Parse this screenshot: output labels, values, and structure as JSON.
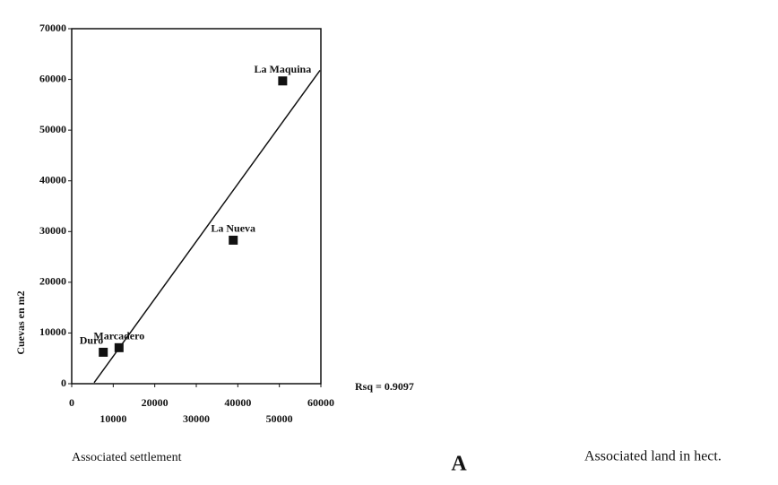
{
  "chart_data": {
    "type": "scatter",
    "ylabel": "Cuevas en m2",
    "xlabel": "Associated settlement",
    "panel_label": "A",
    "x2label": "Associated land in hect.",
    "annotation": "Rsq = 0.9097",
    "labels": [
      "La Maquina",
      "La Nueva",
      "Marcadero",
      "Duro"
    ],
    "x": [
      50800,
      38900,
      11400,
      7600
    ],
    "values": [
      59700,
      28300,
      7100,
      6200
    ],
    "color": "#111111",
    "fit_line": {
      "x": [
        5400,
        59800
      ],
      "y": [
        200,
        61800
      ]
    },
    "xlim": [
      0,
      60000
    ],
    "xticks": [
      0,
      10000,
      20000,
      30000,
      40000,
      50000,
      60000
    ],
    "ylim": [
      0,
      70000
    ],
    "yticks": [
      0,
      10000,
      20000,
      30000,
      40000,
      50000,
      60000,
      70000
    ]
  }
}
